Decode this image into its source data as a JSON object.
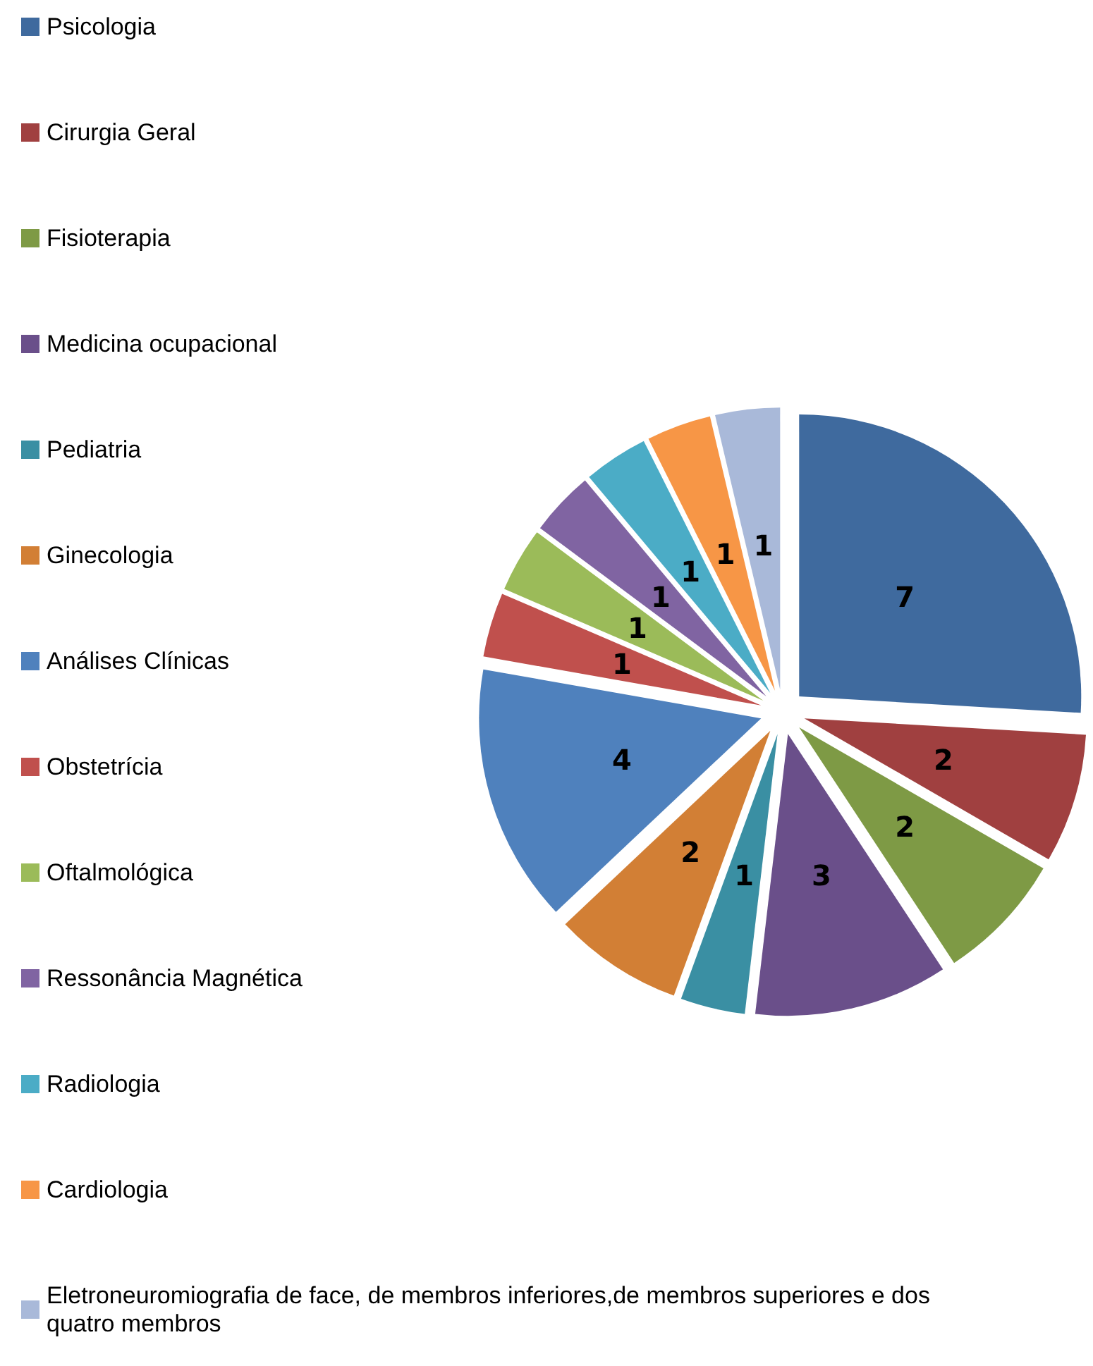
{
  "chart_data": {
    "type": "pie",
    "categories": [
      "Psicologia",
      "Cirurgia Geral",
      "Fisioterapia",
      "Medicina ocupacional",
      "Pediatria",
      "Ginecologia",
      "Análises Clínicas",
      "Obstetrícia",
      "Oftalmológica",
      "Ressonância Magnética",
      "Radiologia",
      "Cardiologia",
      "Eletroneuromiografia de face, de membros inferiores,de membros superiores e dos quatro membros"
    ],
    "values": [
      7,
      2,
      2,
      3,
      1,
      2,
      4,
      1,
      1,
      1,
      1,
      1,
      1
    ],
    "colors": [
      "#3f6a9e",
      "#a04040",
      "#7e9a45",
      "#6a4f8a",
      "#3a8fa3",
      "#d27f35",
      "#4f81bd",
      "#c0504d",
      "#9bbb59",
      "#8064a2",
      "#4bacc6",
      "#f79646",
      "#a9b9d9"
    ],
    "data_labels": true,
    "legend": "left"
  }
}
